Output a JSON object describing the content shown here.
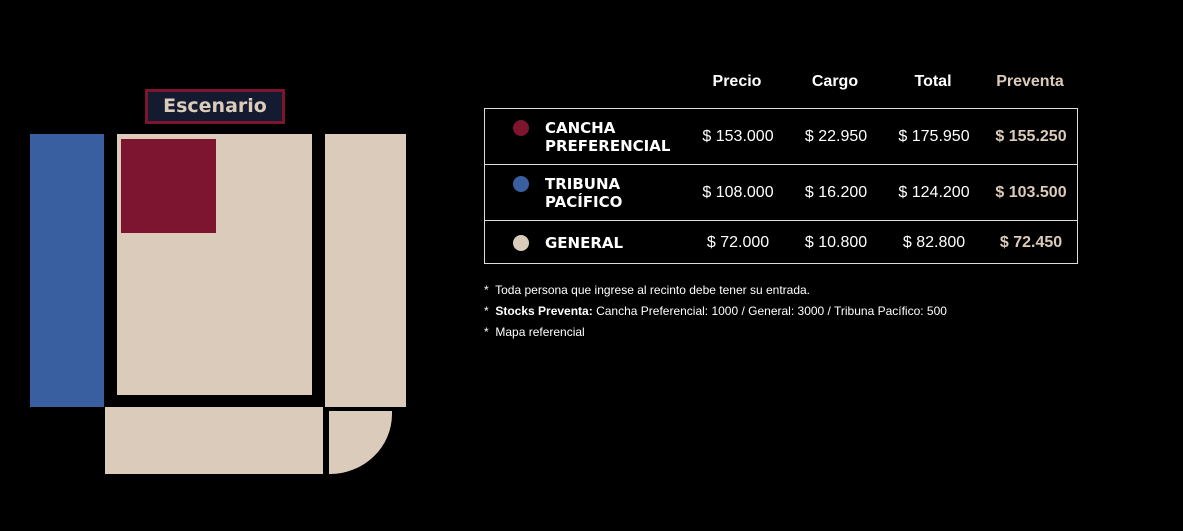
{
  "map": {
    "stage_label": "Escenario",
    "colors": {
      "cancha": "#7d1530",
      "tribuna": "#3a5fa0",
      "general": "#dbcbbb"
    }
  },
  "table": {
    "headers": [
      "Precio",
      "Cargo",
      "Total",
      "Preventa"
    ],
    "rows": [
      {
        "name_line1": "CANCHA",
        "name_line2": "PREFERENCIAL",
        "color": "#7d1530",
        "precio": "$ 153.000",
        "cargo": "$ 22.950",
        "total": "$ 175.950",
        "preventa": "$ 155.250"
      },
      {
        "name_line1": "TRIBUNA",
        "name_line2": "PACÍFICO",
        "color": "#3a5fa0",
        "precio": "$ 108.000",
        "cargo": "$ 16.200",
        "total": "$ 124.200",
        "preventa": "$ 103.500"
      },
      {
        "name_line1": "GENERAL",
        "name_line2": "",
        "color": "#dbcbbb",
        "precio": "$ 72.000",
        "cargo": "$ 10.800",
        "total": "$ 82.800",
        "preventa": "$ 72.450"
      }
    ]
  },
  "notes": {
    "bullet": "*",
    "n1": "Toda persona que ingrese al recinto debe tener su entrada.",
    "n2_bold": "Stocks Preventa:",
    "n2": " Cancha Preferencial: 1000 / General: 3000 / Tribuna Pacífico: 500",
    "n3": "Mapa referencial"
  }
}
